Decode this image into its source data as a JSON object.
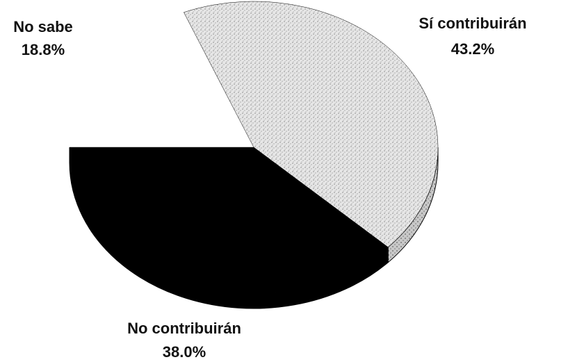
{
  "chart_data": {
    "type": "pie",
    "labels": [
      "No sabe",
      "Sí contribuirán",
      "No contribuirán"
    ],
    "values": [
      18.8,
      43.2,
      38.0
    ],
    "value_labels": [
      "18.8%",
      "43.2%",
      "38.0%"
    ],
    "colors": [
      "#ffffff",
      "#d8d8d8",
      "#000000"
    ]
  }
}
